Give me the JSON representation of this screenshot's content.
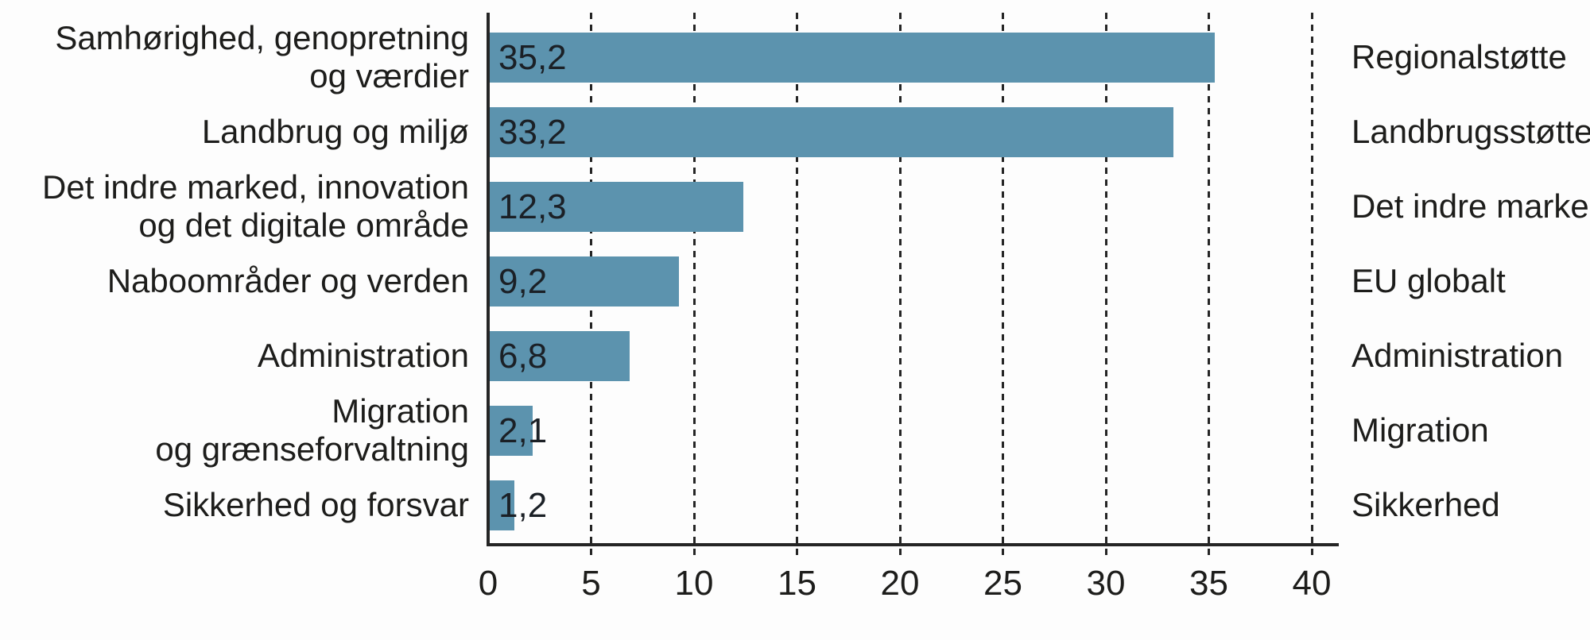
{
  "chart_data": {
    "type": "bar",
    "orientation": "horizontal",
    "title": "",
    "xlabel": "",
    "ylabel": "",
    "xlim": [
      0,
      40
    ],
    "x_ticks": [
      0,
      5,
      10,
      15,
      20,
      25,
      30,
      35,
      40
    ],
    "x_tick_labels": [
      "0",
      "5",
      "10",
      "15",
      "20",
      "25",
      "30",
      "35",
      "40"
    ],
    "grid": "dotted-vertical-gridlines",
    "legend": "none",
    "bar_color": "#5c93ae",
    "text_color": "#1d1d1b",
    "axis_color": "#252525",
    "rows": [
      {
        "category_lines": [
          "Samhørighed, genopretning",
          "og værdier"
        ],
        "value": 35.2,
        "value_label": "35,2",
        "right_label": "Regionalstøtte"
      },
      {
        "category_lines": [
          "Landbrug og miljø"
        ],
        "value": 33.2,
        "value_label": "33,2",
        "right_label": "Landbrugsstøtte"
      },
      {
        "category_lines": [
          "Det indre marked, innovation",
          "og det digitale område"
        ],
        "value": 12.3,
        "value_label": "12,3",
        "right_label": "Det indre marked"
      },
      {
        "category_lines": [
          "Naboområder og verden"
        ],
        "value": 9.2,
        "value_label": "9,2",
        "right_label": "EU globalt"
      },
      {
        "category_lines": [
          "Administration"
        ],
        "value": 6.8,
        "value_label": "6,8",
        "right_label": "Administration"
      },
      {
        "category_lines": [
          "Migration",
          "og grænseforvaltning"
        ],
        "value": 2.1,
        "value_label": "2,1",
        "right_label": "Migration"
      },
      {
        "category_lines": [
          "Sikkerhed og forsvar"
        ],
        "value": 1.2,
        "value_label": "1,2",
        "right_label": "Sikkerhed"
      }
    ]
  }
}
